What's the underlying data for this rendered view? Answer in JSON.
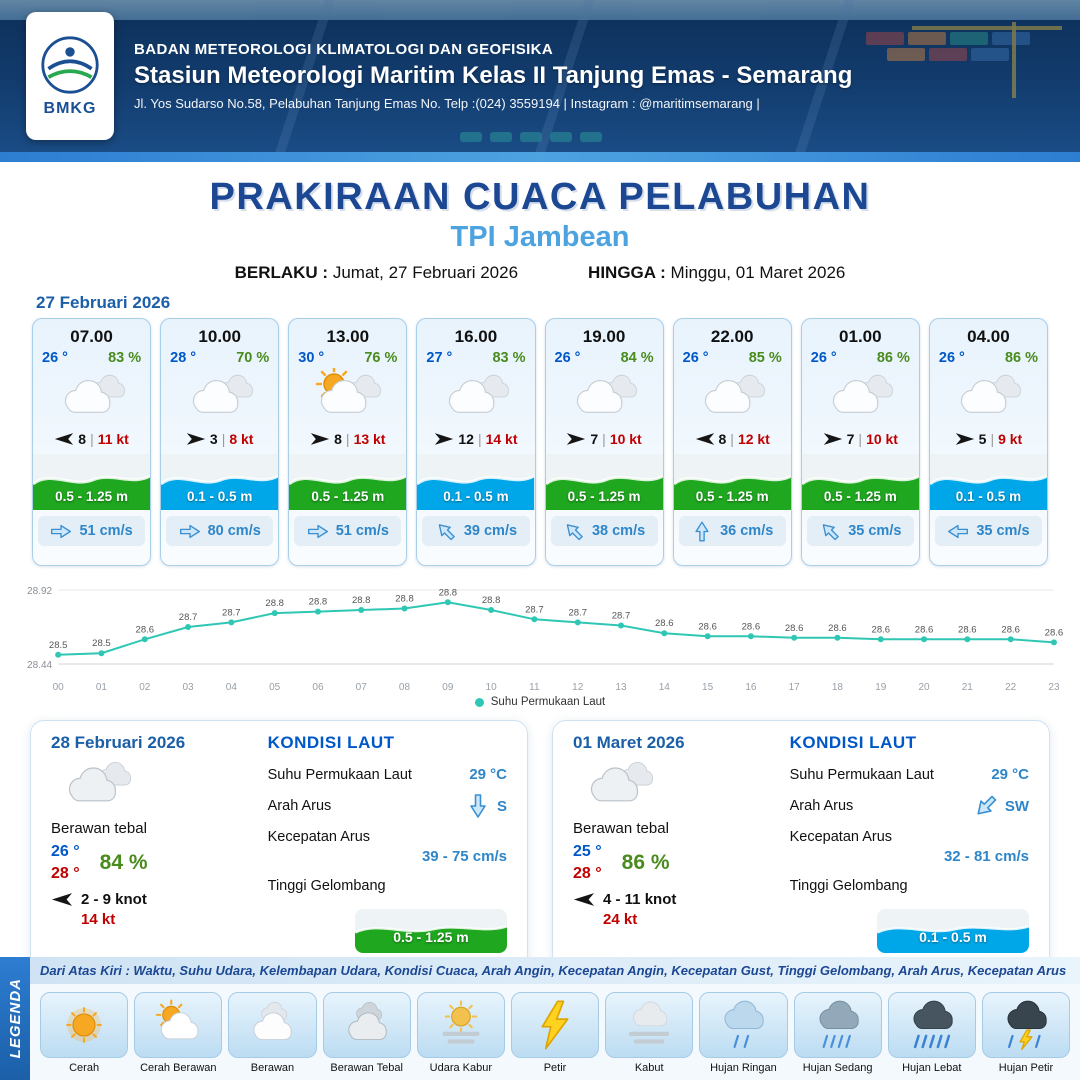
{
  "header": {
    "logo_label": "BMKG",
    "agency": "BADAN METEOROLOGI KLIMATOLOGI DAN GEOFISIKA",
    "station": "Stasiun Meteorologi Maritim Kelas II Tanjung Emas - Semarang",
    "address": "Jl. Yos Sudarso No.58, Pelabuhan Tanjung Emas No. Telp :(024) 3559194 | Instagram : @maritimsemarang |"
  },
  "title": {
    "main": "PRAKIRAAN CUACA PELABUHAN",
    "location": "TPI Jambean",
    "valid_label": "BERLAKU :",
    "valid_value": "Jumat, 27 Februari 2026",
    "until_label": "HINGGA :",
    "until_value": "Minggu, 01 Maret 2026"
  },
  "forecast_date": "27 Februari 2026",
  "hourly": [
    {
      "time": "07.00",
      "temp": "26 °",
      "humidity": "83 %",
      "icon": "berawan",
      "wind_dir_deg": 180,
      "wind_value": "8",
      "wind_gust": "11 kt",
      "wave_label": "0.5 - 1.25 m",
      "wave_type": "green",
      "current_dir_deg": 0,
      "current": "51 cm/s"
    },
    {
      "time": "10.00",
      "temp": "28 °",
      "humidity": "70 %",
      "icon": "berawan",
      "wind_dir_deg": 0,
      "wind_value": "3",
      "wind_gust": "8 kt",
      "wave_label": "0.1 - 0.5 m",
      "wave_type": "blue",
      "current_dir_deg": 0,
      "current": "80 cm/s"
    },
    {
      "time": "13.00",
      "temp": "30 °",
      "humidity": "76 %",
      "icon": "cerah-berawan",
      "wind_dir_deg": 0,
      "wind_value": "8",
      "wind_gust": "13 kt",
      "wave_label": "0.5 - 1.25 m",
      "wave_type": "green",
      "current_dir_deg": 0,
      "current": "51 cm/s"
    },
    {
      "time": "16.00",
      "temp": "27 °",
      "humidity": "83 %",
      "icon": "berawan",
      "wind_dir_deg": 0,
      "wind_value": "12",
      "wind_gust": "14 kt",
      "wave_label": "0.1 - 0.5 m",
      "wave_type": "blue",
      "current_dir_deg": -135,
      "current": "39 cm/s"
    },
    {
      "time": "19.00",
      "temp": "26 °",
      "humidity": "84 %",
      "icon": "berawan",
      "wind_dir_deg": 0,
      "wind_value": "7",
      "wind_gust": "10 kt",
      "wave_label": "0.5 - 1.25 m",
      "wave_type": "green",
      "current_dir_deg": -135,
      "current": "38 cm/s"
    },
    {
      "time": "22.00",
      "temp": "26 °",
      "humidity": "85 %",
      "icon": "berawan",
      "wind_dir_deg": 180,
      "wind_value": "8",
      "wind_gust": "12 kt",
      "wave_label": "0.5 - 1.25 m",
      "wave_type": "green",
      "current_dir_deg": -90,
      "current": "36 cm/s"
    },
    {
      "time": "01.00",
      "temp": "26 °",
      "humidity": "86 %",
      "icon": "berawan",
      "wind_dir_deg": 0,
      "wind_value": "7",
      "wind_gust": "10 kt",
      "wave_label": "0.5 - 1.25 m",
      "wave_type": "green",
      "current_dir_deg": -135,
      "current": "35 cm/s"
    },
    {
      "time": "04.00",
      "temp": "26 °",
      "humidity": "86 %",
      "icon": "berawan",
      "wind_dir_deg": 0,
      "wind_value": "5",
      "wind_gust": "9 kt",
      "wave_label": "0.1 - 0.5 m",
      "wave_type": "blue",
      "current_dir_deg": 180,
      "current": "35 cm/s"
    }
  ],
  "chart_data": {
    "type": "line",
    "series_name": "Suhu Permukaan Laut",
    "x": [
      "00",
      "01",
      "02",
      "03",
      "04",
      "05",
      "06",
      "07",
      "08",
      "09",
      "10",
      "11",
      "12",
      "13",
      "14",
      "15",
      "16",
      "17",
      "18",
      "19",
      "20",
      "21",
      "22",
      "23"
    ],
    "values": [
      28.5,
      28.51,
      28.6,
      28.68,
      28.71,
      28.77,
      28.78,
      28.79,
      28.8,
      28.84,
      28.79,
      28.73,
      28.71,
      28.69,
      28.64,
      28.62,
      28.62,
      28.61,
      28.61,
      28.6,
      28.6,
      28.6,
      28.6,
      28.58
    ],
    "ylim": [
      28.44,
      28.92
    ],
    "xlabel": "",
    "ylabel": "",
    "grid": true,
    "legend_position": "bottom",
    "line_color": "#2fc7b4"
  },
  "daily": [
    {
      "date": "28 Februari 2026",
      "icon": "berawan-tebal",
      "condition": "Berawan tebal",
      "temp_min": "26 °",
      "temp_max": "28 °",
      "humidity": "84 %",
      "wind_dir_deg": 180,
      "wind_range": "2 - 9 knot",
      "wind_gust": "14 kt",
      "sea": {
        "heading": "KONDISI LAUT",
        "sst_label": "Suhu Permukaan Laut",
        "sst": "29 °C",
        "current_dir_label": "Arah Arus",
        "current_dir": "S",
        "current_dir_deg": 90,
        "current_speed_label": "Kecepatan Arus",
        "current_speed": "39 - 75 cm/s",
        "wave_label_title": "Tinggi Gelombang",
        "wave_label": "0.5 - 1.25 m",
        "wave_type": "green"
      }
    },
    {
      "date": "01 Maret 2026",
      "icon": "berawan-tebal",
      "condition": "Berawan tebal",
      "temp_min": "25 °",
      "temp_max": "28 °",
      "humidity": "86 %",
      "wind_dir_deg": 180,
      "wind_range": "4 - 11 knot",
      "wind_gust": "24 kt",
      "sea": {
        "heading": "KONDISI LAUT",
        "sst_label": "Suhu Permukaan Laut",
        "sst": "29 °C",
        "current_dir_label": "Arah Arus",
        "current_dir": "SW",
        "current_dir_deg": 135,
        "current_speed_label": "Kecepatan Arus",
        "current_speed": "32 - 81 cm/s",
        "wave_label_title": "Tinggi Gelombang",
        "wave_label": "0.1 - 0.5 m",
        "wave_type": "blue"
      }
    }
  ],
  "legend": {
    "side_label": "LEGENDA",
    "note": "Dari Atas Kiri : Waktu, Suhu Udara, Kelembapan Udara, Kondisi Cuaca, Arah Angin, Kecepatan Angin, Kecepatan Gust, Tinggi Gelombang, Arah Arus, Kecepatan Arus",
    "items": [
      {
        "label": "Cerah",
        "icon": "cerah"
      },
      {
        "label": "Cerah Berawan",
        "icon": "cerah-berawan"
      },
      {
        "label": "Berawan",
        "icon": "berawan"
      },
      {
        "label": "Berawan Tebal",
        "icon": "berawan-tebal"
      },
      {
        "label": "Udara Kabur",
        "icon": "udara-kabur"
      },
      {
        "label": "Petir",
        "icon": "petir"
      },
      {
        "label": "Kabut",
        "icon": "kabut"
      },
      {
        "label": "Hujan Ringan",
        "icon": "hujan-ringan"
      },
      {
        "label": "Hujan Sedang",
        "icon": "hujan-sedang"
      },
      {
        "label": "Hujan Lebat",
        "icon": "hujan-lebat"
      },
      {
        "label": "Hujan Petir",
        "icon": "hujan-petir"
      }
    ]
  },
  "colors": {
    "accent_blue": "#1b4793",
    "light_blue": "#4da3e0",
    "temp_blue": "#0057c8",
    "humidity_green": "#4a8b1e",
    "gust_red": "#c00000",
    "current_blue": "#2e86c8",
    "wave_green": "#1fa71f",
    "wave_blue": "#00a7e8",
    "chart_line": "#2fc7b4"
  }
}
